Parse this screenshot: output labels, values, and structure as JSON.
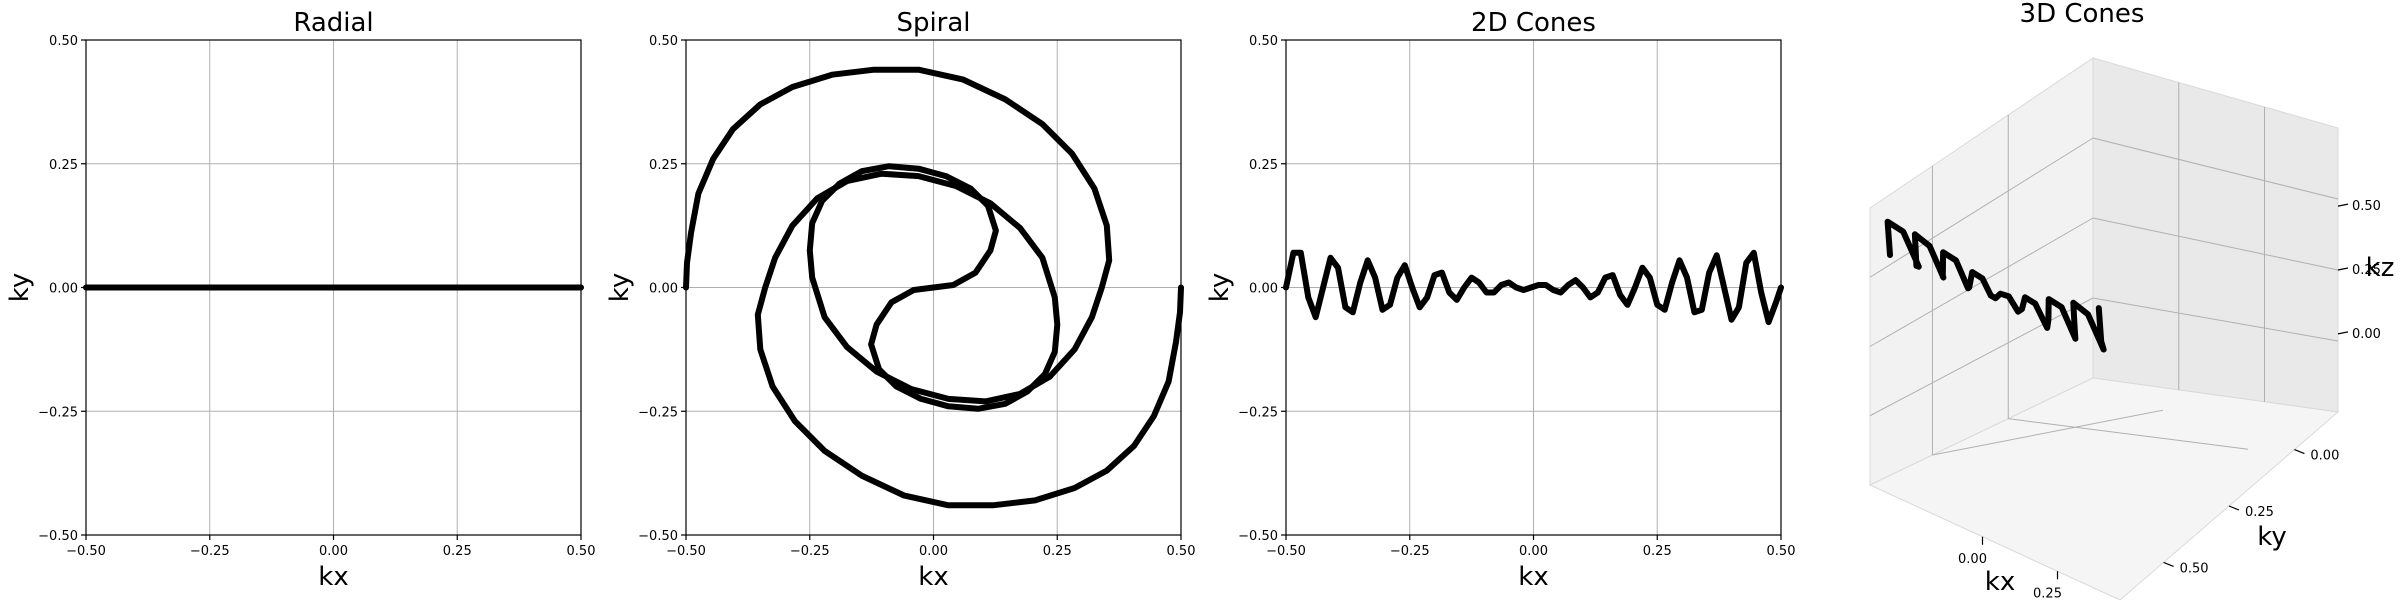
{
  "chart_data": [
    {
      "type": "line",
      "title": "Radial",
      "xlabel": "kx",
      "ylabel": "ky",
      "xlim": [
        -0.5,
        0.5
      ],
      "ylim": [
        -0.5,
        0.5
      ],
      "xticks": [
        -0.5,
        -0.25,
        0.0,
        0.25,
        0.5
      ],
      "yticks": [
        -0.5,
        -0.25,
        0.0,
        0.25,
        0.5
      ],
      "xtick_labels": [
        "−0.50",
        "−0.25",
        "0.00",
        "0.25",
        "0.50"
      ],
      "ytick_labels": [
        "−0.50",
        "−0.25",
        "0.00",
        "0.25",
        "0.50"
      ],
      "grid": true,
      "series": [
        {
          "x": [
            -0.5,
            0.5
          ],
          "y": [
            0.0,
            0.0
          ]
        }
      ]
    },
    {
      "type": "line",
      "title": "Spiral",
      "xlabel": "kx",
      "ylabel": "ky",
      "xlim": [
        -0.5,
        0.5
      ],
      "ylim": [
        -0.5,
        0.5
      ],
      "xticks": [
        -0.5,
        -0.25,
        0.0,
        0.25,
        0.5
      ],
      "yticks": [
        -0.5,
        -0.25,
        0.0,
        0.25,
        0.5
      ],
      "xtick_labels": [
        "−0.50",
        "−0.25",
        "0.00",
        "0.25",
        "0.50"
      ],
      "ytick_labels": [
        "−0.50",
        "−0.25",
        "0.00",
        "0.25",
        "0.50"
      ],
      "grid": true,
      "series": [
        {
          "x": [
            0.0,
            0.04,
            0.085,
            0.115,
            0.126,
            0.11,
            0.075,
            0.025,
            -0.03,
            -0.09,
            -0.145,
            -0.19,
            -0.225,
            -0.245,
            -0.25,
            -0.245,
            -0.22,
            -0.175,
            -0.115,
            -0.045,
            0.03,
            0.105,
            0.175,
            0.235,
            0.285,
            0.32,
            0.34,
            0.355,
            0.35,
            0.325,
            0.28,
            0.22,
            0.145,
            0.06,
            -0.03,
            -0.12,
            -0.205,
            -0.285,
            -0.35,
            -0.405,
            -0.445,
            -0.475,
            -0.49,
            -0.498,
            -0.5
          ],
          "y": [
            0.0,
            0.005,
            0.03,
            0.075,
            0.115,
            0.165,
            0.2,
            0.225,
            0.24,
            0.245,
            0.235,
            0.21,
            0.175,
            0.13,
            0.075,
            0.02,
            -0.06,
            -0.12,
            -0.17,
            -0.205,
            -0.225,
            -0.23,
            -0.215,
            -0.18,
            -0.125,
            -0.06,
            0.0,
            0.055,
            0.125,
            0.2,
            0.27,
            0.33,
            0.38,
            0.42,
            0.44,
            0.44,
            0.43,
            0.405,
            0.37,
            0.32,
            0.26,
            0.19,
            0.11,
            0.05,
            0.0
          ]
        },
        {
          "x": [
            0.0,
            -0.04,
            -0.085,
            -0.115,
            -0.126,
            -0.11,
            -0.075,
            -0.025,
            0.03,
            0.09,
            0.145,
            0.19,
            0.225,
            0.245,
            0.25,
            0.245,
            0.22,
            0.175,
            0.115,
            0.045,
            -0.03,
            -0.105,
            -0.175,
            -0.235,
            -0.285,
            -0.32,
            -0.34,
            -0.355,
            -0.35,
            -0.325,
            -0.28,
            -0.22,
            -0.145,
            -0.06,
            0.03,
            0.12,
            0.205,
            0.285,
            0.35,
            0.405,
            0.445,
            0.475,
            0.49,
            0.498,
            0.5
          ],
          "y": [
            0.0,
            -0.005,
            -0.03,
            -0.075,
            -0.115,
            -0.165,
            -0.2,
            -0.225,
            -0.24,
            -0.245,
            -0.235,
            -0.21,
            -0.175,
            -0.13,
            -0.075,
            -0.02,
            0.06,
            0.12,
            0.17,
            0.205,
            0.225,
            0.23,
            0.215,
            0.18,
            0.125,
            0.06,
            0.0,
            -0.055,
            -0.125,
            -0.2,
            -0.27,
            -0.33,
            -0.38,
            -0.42,
            -0.44,
            -0.44,
            -0.43,
            -0.405,
            -0.37,
            -0.32,
            -0.26,
            -0.19,
            -0.11,
            -0.05,
            0.0
          ]
        }
      ]
    },
    {
      "type": "line",
      "title": "2D Cones",
      "xlabel": "kx",
      "ylabel": "ky",
      "xlim": [
        -0.5,
        0.5
      ],
      "ylim": [
        -0.5,
        0.5
      ],
      "xticks": [
        -0.5,
        -0.25,
        0.0,
        0.25,
        0.5
      ],
      "yticks": [
        -0.5,
        -0.25,
        0.0,
        0.25,
        0.5
      ],
      "xtick_labels": [
        "−0.50",
        "−0.25",
        "0.00",
        "0.25",
        "0.50"
      ],
      "ytick_labels": [
        "−0.50",
        "−0.25",
        "0.00",
        "0.25",
        "0.50"
      ],
      "grid": true,
      "series": [
        {
          "x": [
            -0.5,
            -0.485,
            -0.47,
            -0.455,
            -0.44,
            -0.425,
            -0.41,
            -0.395,
            -0.38,
            -0.365,
            -0.35,
            -0.335,
            -0.32,
            -0.305,
            -0.29,
            -0.275,
            -0.26,
            -0.245,
            -0.23,
            -0.215,
            -0.2,
            -0.185,
            -0.17,
            -0.155,
            -0.14,
            -0.125,
            -0.11,
            -0.095,
            -0.08,
            -0.065,
            -0.05,
            -0.035,
            -0.02,
            -0.005,
            0.01,
            0.025,
            0.04,
            0.055,
            0.07,
            0.085,
            0.1,
            0.115,
            0.13,
            0.145,
            0.16,
            0.175,
            0.19,
            0.205,
            0.22,
            0.235,
            0.25,
            0.265,
            0.28,
            0.295,
            0.31,
            0.325,
            0.34,
            0.355,
            0.37,
            0.385,
            0.4,
            0.415,
            0.43,
            0.445,
            0.46,
            0.475,
            0.49,
            0.5
          ],
          "y": [
            0.0,
            0.07,
            0.07,
            -0.02,
            -0.06,
            0.0,
            0.06,
            0.04,
            -0.04,
            -0.05,
            0.01,
            0.055,
            0.02,
            -0.045,
            -0.035,
            0.02,
            0.045,
            0.0,
            -0.04,
            -0.02,
            0.025,
            0.03,
            -0.01,
            -0.025,
            0.0,
            0.02,
            0.01,
            -0.01,
            -0.01,
            0.005,
            0.01,
            0.0,
            -0.005,
            0.0,
            0.005,
            0.005,
            -0.005,
            -0.01,
            0.005,
            0.015,
            0.0,
            -0.02,
            -0.01,
            0.02,
            0.025,
            -0.015,
            -0.035,
            0.0,
            0.04,
            0.02,
            -0.035,
            -0.045,
            0.01,
            0.055,
            0.02,
            -0.05,
            -0.045,
            0.03,
            0.065,
            0.0,
            -0.065,
            -0.04,
            0.05,
            0.07,
            -0.01,
            -0.07,
            -0.03,
            0.0
          ]
        }
      ]
    },
    {
      "type": "line",
      "title": "3D Cones",
      "xlabel": "kx",
      "ylabel": "ky",
      "zlabel": "kz",
      "projection": "3d",
      "xticks": [
        0.0,
        0.25
      ],
      "yticks": [
        0.0,
        0.25,
        0.5
      ],
      "zticks": [
        0.0,
        0.25,
        0.5
      ],
      "xtick_labels": [
        "0.00",
        "0.25"
      ],
      "ytick_labels": [
        "0.00",
        "0.25",
        "0.50"
      ],
      "ztick_labels": [
        "0.00",
        "0.25",
        "0.50"
      ],
      "grid": true,
      "series": [
        {
          "x": [
            -0.5,
            -0.47,
            -0.44,
            -0.41,
            -0.38,
            -0.35,
            -0.32,
            -0.29,
            -0.26,
            -0.23,
            -0.2,
            -0.17,
            -0.14,
            -0.11,
            -0.08,
            -0.05,
            -0.02,
            0.01,
            0.04,
            0.07,
            0.1,
            0.13,
            0.16,
            0.19,
            0.22,
            0.25,
            0.28,
            0.31,
            0.34,
            0.37,
            0.4,
            0.43,
            0.46,
            0.49
          ],
          "y": [
            0.0,
            0.05,
            0.0,
            -0.05,
            0.0,
            0.045,
            0.0,
            -0.04,
            0.0,
            0.035,
            0.0,
            -0.03,
            0.0,
            0.02,
            0.0,
            -0.01,
            0.0,
            0.01,
            0.0,
            -0.015,
            0.0,
            0.02,
            0.0,
            -0.03,
            0.0,
            0.035,
            0.0,
            -0.04,
            0.0,
            0.045,
            0.0,
            -0.05,
            0.0,
            0.05
          ],
          "z": [
            0.0,
            0.05,
            0.08,
            0.04,
            0.0,
            0.05,
            0.07,
            0.03,
            0.0,
            0.04,
            0.06,
            0.02,
            0.0,
            0.03,
            0.04,
            0.01,
            0.0,
            0.01,
            0.02,
            0.0,
            0.0,
            0.02,
            0.03,
            0.0,
            0.0,
            0.03,
            0.05,
            0.01,
            0.0,
            0.04,
            0.06,
            0.02,
            0.0,
            0.05
          ]
        }
      ]
    }
  ]
}
